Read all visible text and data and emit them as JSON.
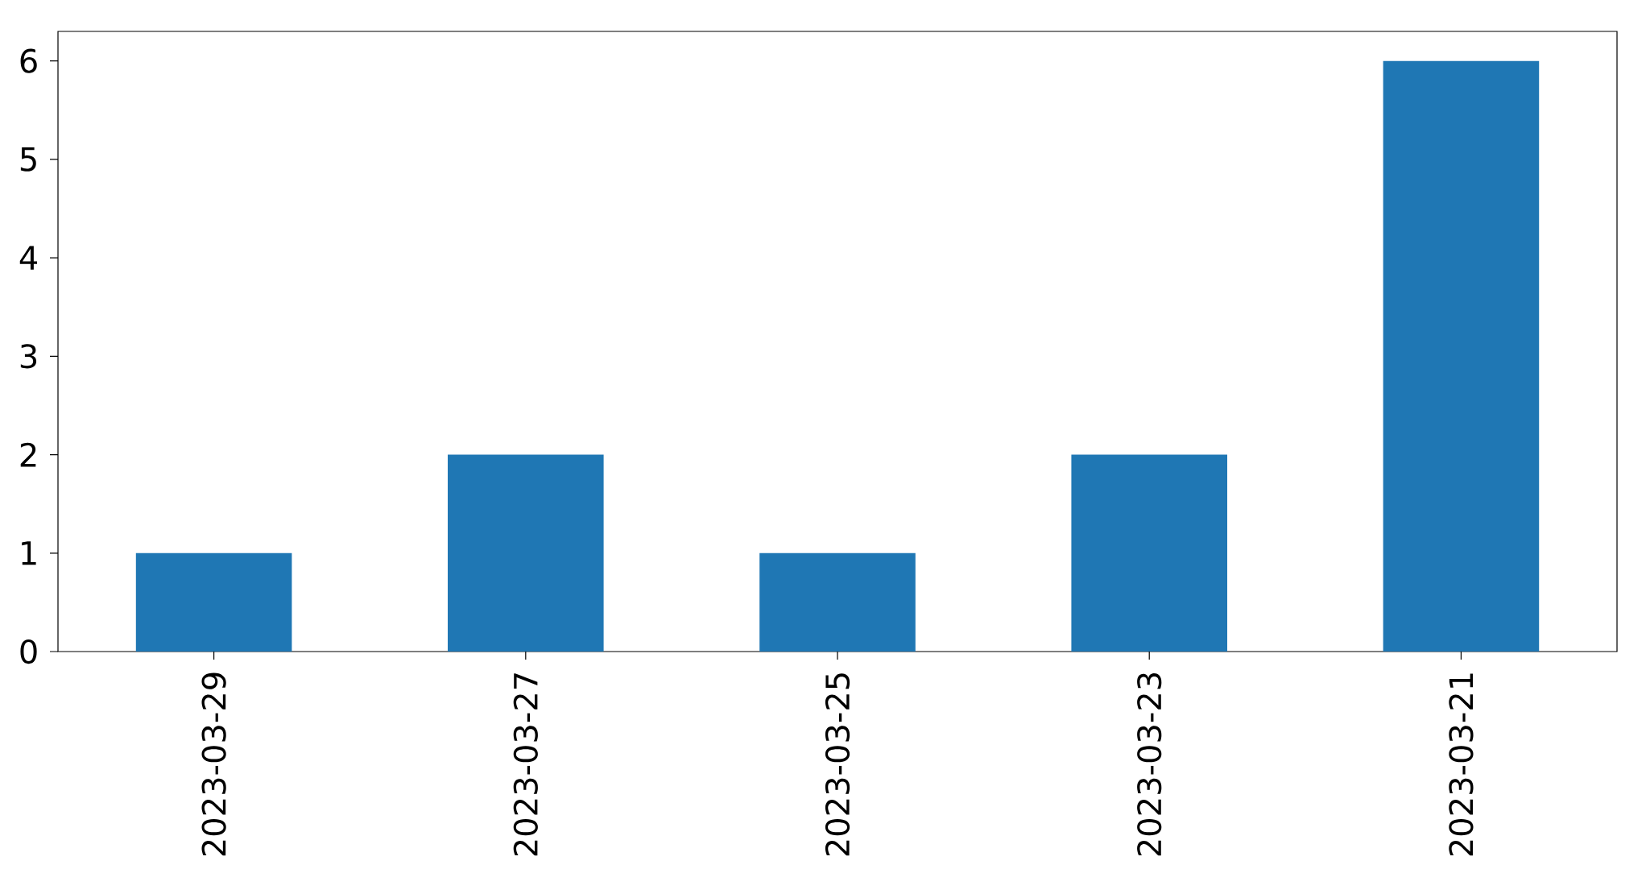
{
  "chart_data": {
    "type": "bar",
    "categories": [
      "2023-03-29",
      "2023-03-27",
      "2023-03-25",
      "2023-03-23",
      "2023-03-21"
    ],
    "values": [
      1,
      2,
      1,
      2,
      6
    ],
    "color": "#1f77b4",
    "ylim": [
      0,
      6.3
    ],
    "yticks": [
      0,
      1,
      2,
      3,
      4,
      5,
      6
    ]
  }
}
